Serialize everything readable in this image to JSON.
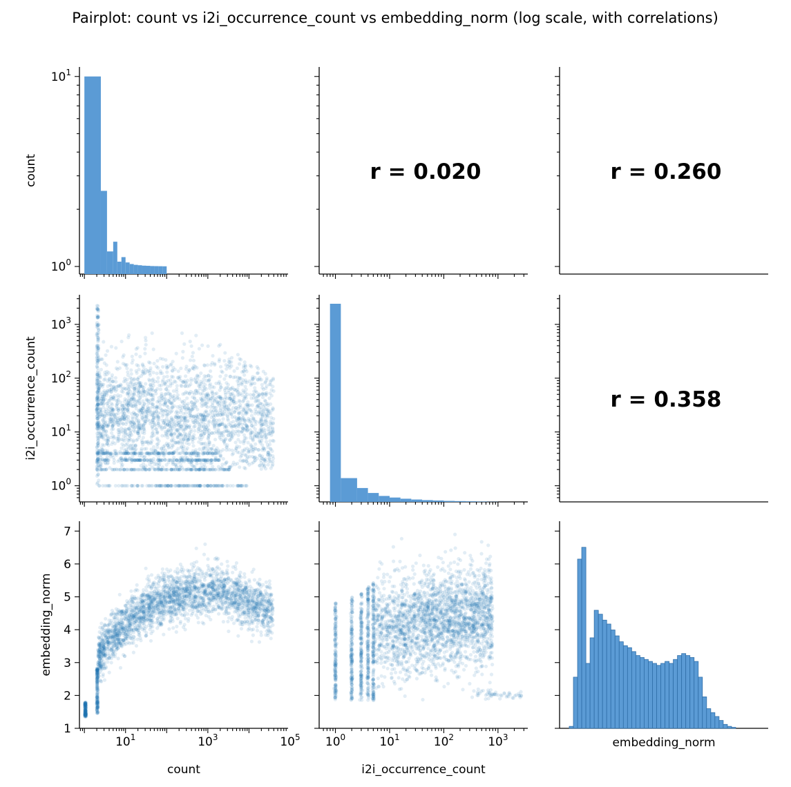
{
  "chart_data": {
    "type": "pairplot",
    "title": "Pairplot: count vs i2i_occurrence_count vs embedding_norm (log scale, with correlations)",
    "variables": [
      "count",
      "i2i_occurrence_count",
      "embedding_norm"
    ],
    "scales": {
      "count": "log",
      "i2i_occurrence_count": "log",
      "embedding_norm": "linear"
    },
    "axis_ranges": {
      "count_log10": [
        -0.12,
        4.95
      ],
      "i2i_occurrence_count_log10": [
        -0.3,
        3.55
      ],
      "embedding_norm": [
        1.0,
        7.3
      ],
      "count_hist_y_log10": [
        -0.04,
        1.05
      ]
    },
    "tick_labels": {
      "count": [
        "10^1",
        "10^3",
        "10^5"
      ],
      "i2i_occurrence_count": [
        "10^0",
        "10^1",
        "10^2",
        "10^3"
      ],
      "embedding_norm": [
        "1",
        "2",
        "3",
        "4",
        "5",
        "6",
        "7"
      ],
      "count_hist_y": [
        "10^0",
        "10^1"
      ]
    },
    "correlations": [
      {
        "row": "count",
        "col": "i2i_occurrence_count",
        "label": "r = 0.020",
        "value": 0.02
      },
      {
        "row": "count",
        "col": "embedding_norm",
        "label": "r = 0.260",
        "value": 0.26
      },
      {
        "row": "i2i_occurrence_count",
        "col": "embedding_norm",
        "label": "r = 0.358",
        "value": 0.358
      }
    ],
    "hist_count": {
      "x_log10_edges": [
        0,
        0.4,
        0.55,
        0.7,
        0.8,
        0.9,
        1.0,
        1.1,
        1.2,
        1.3,
        1.4,
        1.5,
        1.6,
        1.7,
        1.8,
        1.9,
        2.0
      ],
      "y": [
        10,
        2.5,
        1.2,
        1.35,
        1.06,
        1.12,
        1.05,
        1.03,
        1.02,
        1.015,
        1.01,
        1.008,
        1.005,
        1.004,
        1.003,
        1.002
      ]
    },
    "hist_i2i": {
      "x_log10_edges": [
        -0.1,
        0.1,
        0.4,
        0.6,
        0.8,
        1.0,
        1.2,
        1.4,
        1.6,
        1.8,
        2.0,
        2.2,
        2.4,
        2.6,
        2.8,
        3.0
      ],
      "relative_height": [
        1.0,
        0.12,
        0.07,
        0.045,
        0.03,
        0.022,
        0.016,
        0.012,
        0.009,
        0.007,
        0.005,
        0.004,
        0.003,
        0.002,
        0.001
      ]
    },
    "hist_embedding_norm": {
      "bin_start": 1.15,
      "bin_width": 0.1,
      "relative_height": [
        0.01,
        0.26,
        0.86,
        0.92,
        0.33,
        0.46,
        0.6,
        0.58,
        0.55,
        0.53,
        0.5,
        0.47,
        0.44,
        0.42,
        0.41,
        0.39,
        0.37,
        0.36,
        0.35,
        0.34,
        0.33,
        0.32,
        0.33,
        0.34,
        0.33,
        0.35,
        0.37,
        0.38,
        0.37,
        0.36,
        0.34,
        0.26,
        0.16,
        0.1,
        0.08,
        0.06,
        0.04,
        0.02,
        0.01,
        0.005
      ]
    },
    "scatter_note": "Dense scatter clouds of blue semi-transparent points (alpha ~0.15)",
    "colors": {
      "bar": "#5b9bd5",
      "bar_edge": "#2f6ea8",
      "point": "#1f77b4",
      "axis": "#000000"
    }
  }
}
